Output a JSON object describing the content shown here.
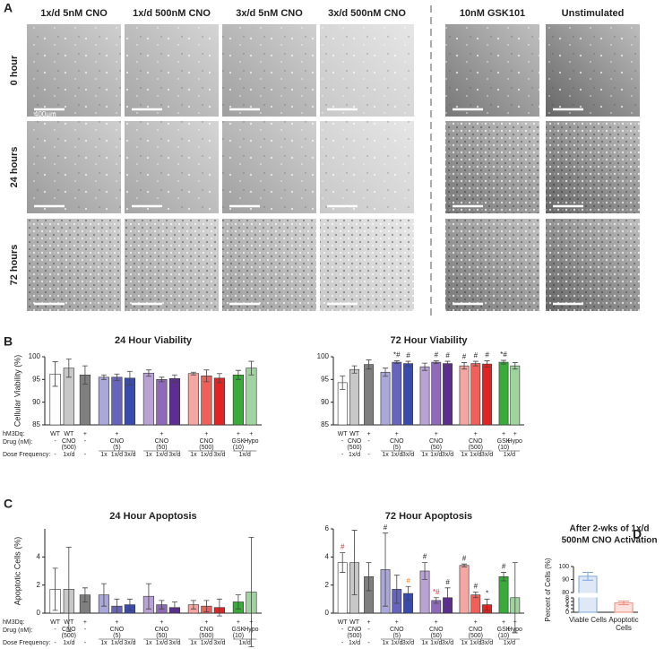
{
  "panel_labels": [
    "A",
    "B",
    "C",
    "D"
  ],
  "panel_a": {
    "columns": [
      "1x/d 5nM CNO",
      "1x/d 500nM CNO",
      "3x/d 5nM CNO",
      "3x/d 500nM CNO",
      "10nM GSK101",
      "Unstimulated"
    ],
    "rows": [
      "0 hour",
      "24 hours",
      "72 hours"
    ],
    "scale_bar": "400μm"
  },
  "x_axis": {
    "row_labels": [
      "hM3Dq:",
      "Drug (nM):",
      "Dose Frequency:"
    ],
    "hm3dq": [
      "WT",
      "WT",
      "+",
      null,
      "+",
      null,
      null,
      "+",
      null,
      null,
      "+",
      null,
      "+",
      "+"
    ],
    "drug": [
      "-",
      "CNO",
      "-",
      null,
      "CNO",
      null,
      null,
      "CNO",
      null,
      null,
      "CNO",
      null,
      "GSK",
      "Hypo"
    ],
    "drug_dose": [
      null,
      "(500)",
      null,
      null,
      "(5)",
      null,
      null,
      "(50)",
      null,
      null,
      "(500)",
      null,
      "(10)",
      null
    ],
    "dose": [
      "-",
      "1x/d",
      "-",
      "1x",
      "1x/d",
      "3x/d",
      "1x",
      "1x/d",
      "3x/d",
      "1x",
      "1x/d",
      "3x/d",
      null,
      null
    ],
    "dose_shared": "1x/d"
  },
  "chart_data": [
    {
      "type": "bar",
      "title": "24 Hour Viability",
      "ylabel": "Cellular Viability (%)",
      "ylim": [
        85,
        100
      ],
      "yticks": [
        85,
        90,
        95,
        100
      ],
      "values": [
        96.2,
        97.5,
        96,
        95.5,
        95.5,
        95.3,
        96.4,
        95,
        95.2,
        96.3,
        95.8,
        95.3,
        96,
        97.5
      ],
      "errors": [
        2.7,
        2,
        2,
        0.5,
        0.7,
        1.5,
        0.7,
        0.5,
        0.8,
        0.3,
        1.3,
        1,
        1,
        1.5
      ],
      "colors": [
        "#ffffff",
        "#c8c8c8",
        "#7f7f7f",
        "#aaa8d8",
        "#6664bc",
        "#3a4bb0",
        "#b9a2d4",
        "#8e6ab8",
        "#5c2e91",
        "#f4a6a2",
        "#f0605a",
        "#e02424",
        "#3aaa3a",
        "#9fd49f"
      ]
    },
    {
      "type": "bar",
      "title": "72 Hour Viability",
      "ylim": [
        85,
        100
      ],
      "yticks": [
        85,
        90,
        95,
        100
      ],
      "values": [
        94.3,
        97.2,
        98.3,
        96.6,
        98.8,
        98.5,
        97.8,
        98.8,
        98.5,
        98,
        98.5,
        98.4,
        98.8,
        98
      ],
      "errors": [
        1.5,
        0.8,
        1,
        0.9,
        0.3,
        0.5,
        0.8,
        0.3,
        0.5,
        0.7,
        0.5,
        0.7,
        0.4,
        0.7
      ],
      "colors": [
        "#ffffff",
        "#c8c8c8",
        "#7f7f7f",
        "#aaa8d8",
        "#6664bc",
        "#3a4bb0",
        "#b9a2d4",
        "#8e6ab8",
        "#5c2e91",
        "#f4a6a2",
        "#f0605a",
        "#e02424",
        "#3aaa3a",
        "#9fd49f"
      ],
      "markers": [
        null,
        null,
        null,
        null,
        "*#",
        "#",
        null,
        "#",
        "#",
        "#",
        "#",
        "#",
        "*#",
        null
      ]
    },
    {
      "type": "bar",
      "title": "24 Hour Apoptosis",
      "ylabel": "Apoptotic Cells (%)",
      "ylim": [
        0,
        6
      ],
      "yticks": [
        0,
        2,
        4
      ],
      "values": [
        1.7,
        1.7,
        1.3,
        1.3,
        0.5,
        0.6,
        1.2,
        0.6,
        0.4,
        0.6,
        0.5,
        0.4,
        0.8,
        1.5
      ],
      "errors": [
        1.5,
        3,
        0.5,
        0.8,
        0.5,
        0.4,
        0.9,
        0.3,
        0.4,
        0.3,
        0.4,
        0.6,
        0.5,
        3.9
      ],
      "colors": [
        "#ffffff",
        "#c8c8c8",
        "#7f7f7f",
        "#aaa8d8",
        "#6664bc",
        "#3a4bb0",
        "#b9a2d4",
        "#8e6ab8",
        "#5c2e91",
        "#f4a6a2",
        "#f0605a",
        "#e02424",
        "#3aaa3a",
        "#9fd49f"
      ]
    },
    {
      "type": "bar",
      "title": "72 Hour Apoptosis",
      "ylim": [
        0,
        6
      ],
      "yticks": [
        0,
        2,
        4,
        6
      ],
      "values": [
        3.6,
        3.6,
        2.6,
        3.1,
        1.7,
        1.4,
        3,
        0.9,
        1.1,
        3.4,
        1.3,
        0.6,
        2.6,
        1.1
      ],
      "errors": [
        0.7,
        2.3,
        1,
        2.6,
        1,
        0.5,
        0.6,
        0.2,
        0.7,
        0.1,
        0.2,
        0.4,
        0.3,
        2.5
      ],
      "colors": [
        "#ffffff",
        "#c8c8c8",
        "#7f7f7f",
        "#aaa8d8",
        "#6664bc",
        "#3a4bb0",
        "#b9a2d4",
        "#8e6ab8",
        "#5c2e91",
        "#f4a6a2",
        "#f0605a",
        "#e02424",
        "#3aaa3a",
        "#9fd49f"
      ],
      "markers": [
        "#",
        null,
        null,
        "#",
        null,
        "#",
        "#",
        "*#",
        "#",
        "#",
        "#",
        "*",
        "#",
        null
      ],
      "marker_colors": [
        "#e0302a",
        null,
        null,
        null,
        null,
        "#f08020",
        null,
        "#e0302a",
        null,
        null,
        null,
        null,
        null,
        null
      ]
    },
    {
      "type": "broken_bar",
      "title": [
        "After 2-wks of 1x/d",
        "500nM CNO Activation"
      ],
      "ylabel": "Percent of Cells (%)",
      "categories": [
        "Viable Cells",
        "Apoptotic Cells"
      ],
      "values": [
        92.5,
        5.2
      ],
      "errors": [
        3,
        1
      ],
      "colors": [
        "#7ea6dc",
        "#f08a7a"
      ],
      "ylim": [
        0,
        100
      ],
      "axis_break": [
        8,
        80
      ],
      "yticks": [
        0,
        2,
        4,
        6,
        8,
        80,
        90,
        100
      ]
    }
  ]
}
